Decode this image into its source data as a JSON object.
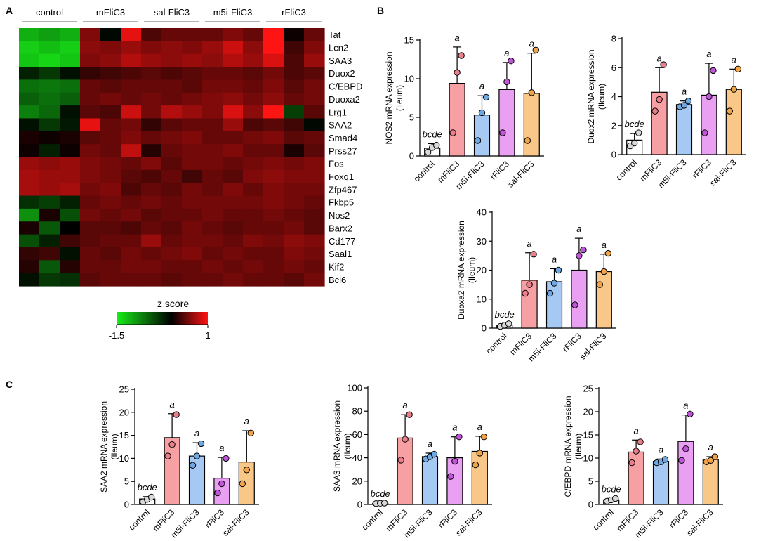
{
  "panel_letters": {
    "A": "A",
    "B": "B",
    "C": "C"
  },
  "colors": {
    "control": "#ffffff",
    "mFliC3": "#f7a0a3",
    "m5i-FliC3": "#a6c9f4",
    "rFliC3": "#e9a0f2",
    "sal-FliC3": "#f9c788",
    "control_dot": "#d8d8d8",
    "mFliC3_dot": "#e97f8a",
    "m5i-FliC3_dot": "#6fa7e0",
    "rFliC3_dot": "#c155d8",
    "sal-FliC3_dot": "#f0a44a",
    "heat_low": "#18ee18",
    "heat_mid": "#000000",
    "heat_high": "#ff1414"
  },
  "chart_data": [
    {
      "id": "heatmap",
      "type": "heatmap",
      "title": "",
      "group_labels": [
        "control",
        "mFliC3",
        "sal-FliC3",
        "m5i-FliC3",
        "rFliC3"
      ],
      "genes": [
        "Tat",
        "Lcn2",
        "SAA3",
        "Duox2",
        "C/EBPD",
        "Duoxa2",
        "Lrg1",
        "SAA2",
        "Smad4",
        "Prss27",
        "Fos",
        "Foxq1",
        "Zfp467",
        "Fkbp5",
        "Nos2",
        "Barx2",
        "Cd177",
        "Saal1",
        "Kif2",
        "Bcl6"
      ],
      "z": [
        [
          -1.1,
          -1.0,
          -1.1,
          0.5,
          -0.05,
          0.9,
          0.3,
          0.4,
          0.4,
          0.4,
          0.5,
          0.4,
          1.0,
          0.05,
          0.4
        ],
        [
          -1.3,
          -1.2,
          -1.3,
          0.55,
          0.5,
          0.6,
          0.5,
          0.55,
          0.5,
          0.6,
          0.8,
          0.55,
          1.0,
          0.25,
          0.5
        ],
        [
          -1.25,
          -1.35,
          -1.25,
          0.5,
          0.55,
          0.7,
          0.6,
          0.55,
          0.6,
          0.55,
          0.7,
          0.6,
          0.85,
          0.3,
          0.6
        ],
        [
          -0.2,
          -0.35,
          -0.1,
          0.2,
          0.25,
          0.3,
          0.35,
          0.3,
          0.35,
          0.4,
          0.4,
          0.35,
          0.45,
          0.3,
          0.35
        ],
        [
          -0.7,
          -0.75,
          -0.7,
          0.4,
          0.35,
          0.4,
          0.4,
          0.4,
          0.35,
          0.45,
          0.45,
          0.4,
          0.5,
          0.35,
          0.45
        ],
        [
          -0.6,
          -0.7,
          -0.6,
          0.4,
          0.45,
          0.4,
          0.45,
          0.4,
          0.45,
          0.5,
          0.55,
          0.45,
          0.55,
          0.4,
          0.45
        ],
        [
          -0.8,
          -0.65,
          -0.1,
          0.35,
          0.3,
          0.8,
          0.45,
          0.7,
          0.6,
          0.5,
          0.85,
          0.55,
          1.0,
          -0.4,
          0.35
        ],
        [
          -0.1,
          -0.35,
          -0.15,
          0.9,
          0.4,
          0.45,
          0.2,
          0.35,
          0.4,
          0.4,
          0.6,
          0.3,
          0.35,
          0.25,
          -0.05
        ],
        [
          0.1,
          0.05,
          0.1,
          0.35,
          0.4,
          0.5,
          0.4,
          0.45,
          0.5,
          0.4,
          0.4,
          0.45,
          0.5,
          0.35,
          0.4
        ],
        [
          0.05,
          -0.2,
          0.05,
          0.45,
          0.4,
          0.75,
          0.15,
          0.4,
          0.45,
          0.45,
          0.5,
          0.4,
          0.4,
          0.1,
          0.35
        ],
        [
          0.6,
          0.55,
          0.6,
          0.5,
          0.45,
          0.4,
          0.5,
          0.35,
          0.45,
          0.45,
          0.4,
          0.45,
          0.5,
          0.45,
          0.5
        ],
        [
          0.65,
          0.6,
          0.6,
          0.5,
          0.45,
          0.35,
          0.3,
          0.4,
          0.25,
          0.4,
          0.35,
          0.5,
          0.55,
          0.5,
          0.5
        ],
        [
          0.65,
          0.6,
          0.65,
          0.45,
          0.5,
          0.3,
          0.4,
          0.35,
          0.45,
          0.4,
          0.5,
          0.4,
          0.5,
          0.45,
          0.45
        ],
        [
          -0.3,
          -0.4,
          -0.2,
          0.4,
          0.45,
          0.4,
          0.45,
          0.4,
          0.45,
          0.45,
          0.45,
          0.45,
          0.5,
          0.45,
          0.4
        ],
        [
          -0.9,
          0.1,
          -0.5,
          0.45,
          0.4,
          0.45,
          0.35,
          0.4,
          0.4,
          0.45,
          0.4,
          0.4,
          0.45,
          0.4,
          0.35
        ],
        [
          0.1,
          -0.55,
          0.0,
          0.35,
          0.35,
          0.3,
          0.4,
          0.35,
          0.45,
          0.4,
          0.35,
          0.4,
          0.4,
          0.45,
          0.35
        ],
        [
          -0.5,
          -0.2,
          0.25,
          0.35,
          0.4,
          0.4,
          0.6,
          0.4,
          0.45,
          0.45,
          0.4,
          0.5,
          0.45,
          0.55,
          0.5
        ],
        [
          0.2,
          0.25,
          -0.1,
          0.4,
          0.35,
          0.45,
          0.4,
          0.45,
          0.5,
          0.4,
          0.45,
          0.4,
          0.4,
          0.5,
          0.45
        ],
        [
          0.15,
          -0.55,
          0.15,
          0.4,
          0.4,
          0.45,
          0.45,
          0.4,
          0.4,
          0.45,
          0.4,
          0.45,
          0.4,
          0.45,
          0.4
        ],
        [
          -0.1,
          -0.35,
          -0.3,
          0.35,
          0.4,
          0.4,
          0.4,
          0.35,
          0.4,
          0.4,
          0.45,
          0.4,
          0.4,
          0.35,
          0.45
        ]
      ],
      "colorbar": {
        "title": "z score",
        "min": -1.5,
        "max": 1,
        "min_label": "-1.5",
        "max_label": "1"
      }
    },
    {
      "id": "NOS2",
      "panel": "B",
      "type": "bar",
      "ylabel": "NOS2 mRNA expression (Ileum)",
      "ylabel_lines": [
        "NOS2 mRNA expression",
        "(Ileum)"
      ],
      "categories": [
        "control",
        "mFliC3",
        "m5i-FliC3",
        "rFliC3",
        "sal-FliC3"
      ],
      "values": [
        1.0,
        9.4,
        5.3,
        8.6,
        8.1
      ],
      "errors": [
        0.6,
        4.7,
        2.5,
        3.5,
        5.2
      ],
      "points": [
        [
          0.5,
          1.1,
          1.4
        ],
        [
          3.0,
          10.8,
          13.0
        ],
        [
          2.0,
          5.6,
          7.6
        ],
        [
          3.0,
          9.6,
          12.3
        ],
        [
          2.0,
          8.2,
          13.7
        ]
      ],
      "annotations": [
        "bcde",
        "a",
        "a",
        "a",
        "a"
      ],
      "ylim": [
        0,
        15
      ],
      "yticks": [
        0,
        5,
        10,
        15
      ]
    },
    {
      "id": "Duox2",
      "panel": "B",
      "type": "bar",
      "ylabel": "Duox2 mRNA expression (Ileum)",
      "ylabel_lines": [
        "Duox2 mRNA expression",
        "(Ileum)"
      ],
      "categories": [
        "control",
        "mFliC3",
        "m5i-FliC3",
        "rFliC3",
        "sal-FliC3"
      ],
      "values": [
        1.0,
        4.3,
        3.45,
        4.1,
        4.5
      ],
      "errors": [
        0.45,
        1.7,
        0.25,
        2.2,
        1.4
      ],
      "points": [
        [
          0.6,
          0.8,
          1.5
        ],
        [
          3.0,
          3.8,
          6.2
        ],
        [
          3.3,
          3.4,
          3.7
        ],
        [
          1.5,
          4.0,
          5.8
        ],
        [
          3.0,
          4.5,
          5.9
        ]
      ],
      "annotations": [
        "bcde",
        "a",
        "a",
        "a",
        "a"
      ],
      "ylim": [
        0,
        8
      ],
      "yticks": [
        0,
        2,
        4,
        6,
        8
      ]
    },
    {
      "id": "Duoxa2",
      "panel": "B",
      "type": "bar",
      "ylabel": "Duoxa2 mRNA expression (Ileum)",
      "ylabel_lines": [
        "Duoxa2 mRNA expression",
        "(Ileum)"
      ],
      "categories": [
        "control",
        "mFliC3",
        "m5i-FliC3",
        "rFliC3",
        "sal-FliC3"
      ],
      "values": [
        1.0,
        16.5,
        16.0,
        20.0,
        19.5
      ],
      "errors": [
        0.5,
        9.5,
        4.5,
        11.0,
        6.0
      ],
      "points": [
        [
          0.6,
          1.0,
          1.5
        ],
        [
          12.0,
          15.0,
          25.5
        ],
        [
          12.0,
          15.5,
          20.0
        ],
        [
          8.0,
          25.0,
          27.0
        ],
        [
          15.0,
          19.5,
          25.8
        ]
      ],
      "annotations": [
        "bcde",
        "a",
        "a",
        "a",
        "a"
      ],
      "ylim": [
        0,
        40
      ],
      "yticks": [
        0,
        10,
        20,
        30,
        40
      ]
    },
    {
      "id": "SAA2",
      "panel": "C",
      "type": "bar",
      "ylabel": "SAA2 mRNA expression (Ileum)",
      "ylabel_lines": [
        "SAA2 mRNA expression",
        "(Ileum)"
      ],
      "categories": [
        "control",
        "mFliC3",
        "m5i-FliC3",
        "rFliC3",
        "sal-FliC3"
      ],
      "values": [
        1.2,
        14.5,
        10.5,
        5.7,
        9.2
      ],
      "errors": [
        0.5,
        5.2,
        2.9,
        4.5,
        6.8
      ],
      "points": [
        [
          0.6,
          1.1,
          1.6
        ],
        [
          10.5,
          13.0,
          19.5
        ],
        [
          8.5,
          10.5,
          13.2
        ],
        [
          2.5,
          4.5,
          10.0
        ],
        [
          4.5,
          7.5,
          15.5
        ]
      ],
      "annotations": [
        "bcde",
        "a",
        "a",
        "a",
        "a"
      ],
      "ylim": [
        0,
        25
      ],
      "yticks": [
        0,
        5,
        10,
        15,
        20,
        25
      ]
    },
    {
      "id": "SAA3",
      "panel": "C",
      "type": "bar",
      "ylabel": "SAA3 mRNA expression (Ileum)",
      "ylabel_lines": [
        "SAA3 mRNA expression",
        "(Ileum)"
      ],
      "categories": [
        "control",
        "mFliC3",
        "m5i-FliC3",
        "rFliC3",
        "sal-FliC3"
      ],
      "values": [
        1.0,
        57.0,
        41.0,
        40.0,
        45.5
      ],
      "errors": [
        0.3,
        20.0,
        3.0,
        18.0,
        13.0
      ],
      "points": [
        [
          0.8,
          1.0,
          1.2
        ],
        [
          38.0,
          56.0,
          77.0
        ],
        [
          39.0,
          41.0,
          43.0
        ],
        [
          24.0,
          37.0,
          58.0
        ],
        [
          34.0,
          44.0,
          58.0
        ]
      ],
      "annotations": [
        "bcde",
        "a",
        "a",
        "a",
        "a"
      ],
      "ylim": [
        0,
        100
      ],
      "yticks": [
        0,
        20,
        40,
        60,
        80,
        100
      ]
    },
    {
      "id": "CEBPD",
      "panel": "C",
      "type": "bar",
      "ylabel": "C/EBPD mRNA expression (Ileum)",
      "ylabel_lines": [
        "C/EBPD mRNA expression",
        "(Ileum)"
      ],
      "categories": [
        "control",
        "mFliC3",
        "m5i-FliC3",
        "rFliC3",
        "sal-FliC3"
      ],
      "values": [
        1.0,
        11.3,
        9.3,
        13.6,
        9.7
      ],
      "errors": [
        0.3,
        2.6,
        0.5,
        5.7,
        0.6
      ],
      "points": [
        [
          0.7,
          1.0,
          1.3
        ],
        [
          9.0,
          11.5,
          13.5
        ],
        [
          9.0,
          9.2,
          9.7
        ],
        [
          9.5,
          12.0,
          19.5
        ],
        [
          9.2,
          9.5,
          10.3
        ]
      ],
      "annotations": [
        "bcde",
        "a",
        "a",
        "a",
        "a"
      ],
      "ylim": [
        0,
        25
      ],
      "yticks": [
        0,
        5,
        10,
        15,
        20,
        25
      ]
    }
  ]
}
